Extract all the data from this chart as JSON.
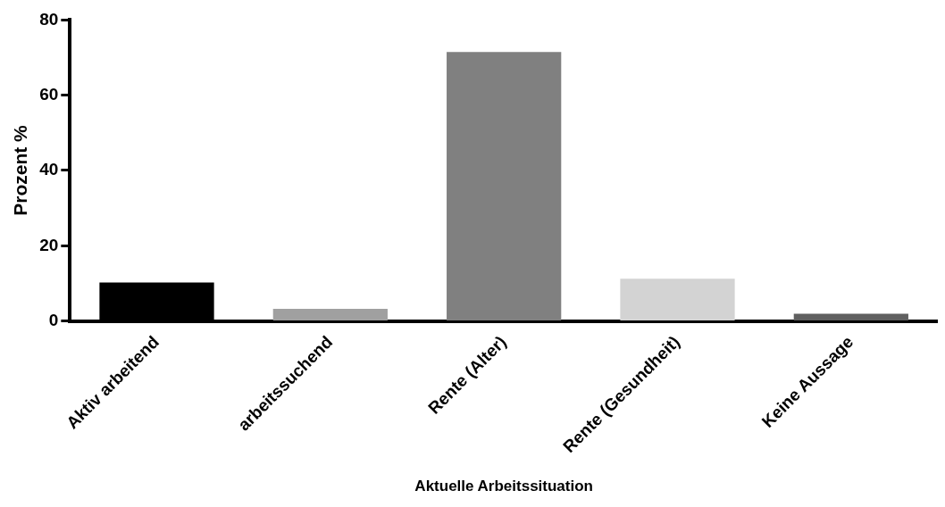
{
  "chart_data": {
    "type": "bar",
    "xlabel": "Aktuelle Arbeitssituation",
    "ylabel": "Prozent %",
    "categories": [
      "Aktiv arbeitend",
      "arbeitssuchend",
      "Rente (Alter)",
      "Rente (Gesundheit)",
      "Keine Aussage"
    ],
    "values": [
      10.2,
      3.2,
      71.5,
      11.2,
      1.9
    ],
    "colors": [
      "#000000",
      "#a0a0a0",
      "#808080",
      "#d3d3d3",
      "#606060"
    ],
    "ylim": [
      0,
      80
    ],
    "yticks": [
      0,
      20,
      40,
      60,
      80
    ],
    "grid": false,
    "legend": false
  }
}
